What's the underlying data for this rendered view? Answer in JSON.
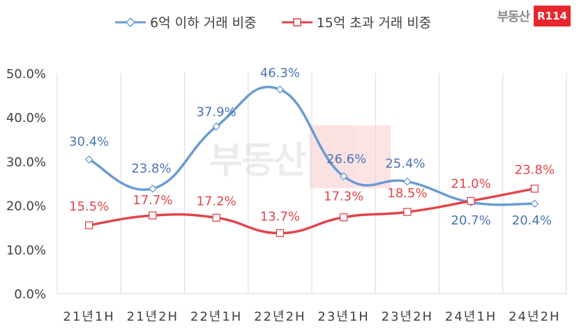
{
  "legend": {
    "series1": "6억 이하 거래 비중",
    "series2": "15억 초과 거래 비중"
  },
  "brand": {
    "text": "부동산",
    "badge": "R114"
  },
  "watermark": {
    "text": "부동산",
    "badge": "R114"
  },
  "colors": {
    "series1": "#6a9bd1",
    "series2": "#e0454a",
    "label1": "#4a73b8",
    "label2": "#e0454a",
    "grid": "#d9d9d9",
    "axis": "#404040"
  },
  "chart_data": {
    "type": "line",
    "categories": [
      "21년1H",
      "21년2H",
      "22년1H",
      "22년2H",
      "23년1H",
      "23년2H",
      "24년1H",
      "24년2H"
    ],
    "series": [
      {
        "name": "6억 이하 거래 비중",
        "values": [
          30.4,
          23.8,
          37.9,
          46.3,
          26.6,
          25.4,
          20.7,
          20.4
        ],
        "marker": "diamond"
      },
      {
        "name": "15억 초과 거래 비중",
        "values": [
          15.5,
          17.7,
          17.2,
          13.7,
          17.3,
          18.5,
          21.0,
          23.8
        ],
        "marker": "square"
      }
    ],
    "value_labels": {
      "series1": [
        "30.4%",
        "23.8%",
        "37.9%",
        "46.3%",
        "26.6%",
        "25.4%",
        "20.7%",
        "20.4%"
      ],
      "series2": [
        "15.5%",
        "17.7%",
        "17.2%",
        "13.7%",
        "17.3%",
        "18.5%",
        "21.0%",
        "23.8%"
      ]
    },
    "y_ticks": [
      "0.0%",
      "10.0%",
      "20.0%",
      "30.0%",
      "40.0%",
      "50.0%"
    ],
    "ylim": [
      0,
      50
    ],
    "grid": true,
    "legend_position": "top",
    "xlabel": "",
    "ylabel": "",
    "title": ""
  }
}
